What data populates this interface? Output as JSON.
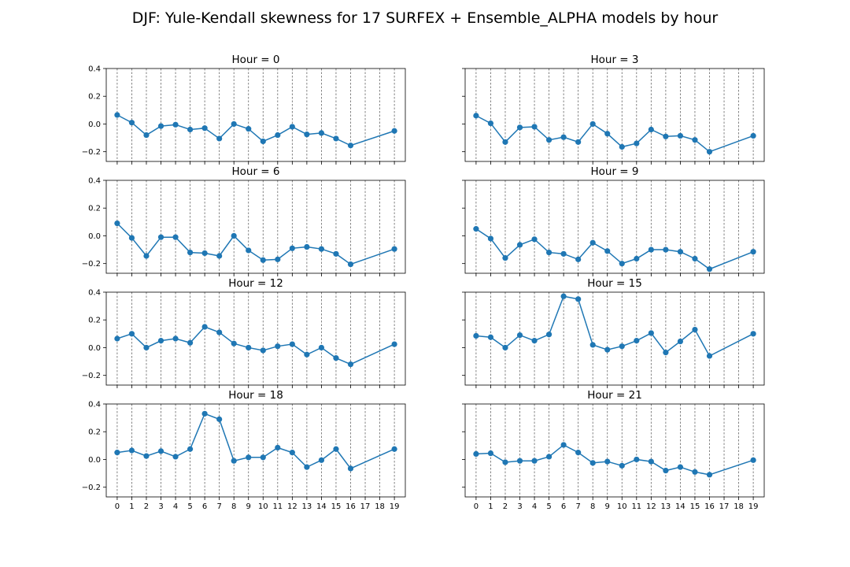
{
  "figure": {
    "title": "DJF: Yule-Kendall skewness for 17 SURFEX + Ensemble_ALPHA models by hour"
  },
  "colors": {
    "series": "#1f77b4",
    "grid": "#666666"
  },
  "chart_data": [
    {
      "type": "line",
      "title": "Hour = 0",
      "x": [
        0,
        1,
        2,
        3,
        4,
        5,
        6,
        7,
        8,
        9,
        10,
        11,
        12,
        13,
        14,
        15,
        16,
        19
      ],
      "values": [
        0.065,
        0.01,
        -0.08,
        -0.015,
        -0.005,
        -0.04,
        -0.03,
        -0.105,
        0.0,
        -0.035,
        -0.125,
        -0.08,
        -0.02,
        -0.075,
        -0.065,
        -0.105,
        -0.155,
        -0.05
      ],
      "xticks": [
        0,
        1,
        2,
        3,
        4,
        5,
        6,
        7,
        8,
        9,
        10,
        11,
        12,
        13,
        14,
        15,
        16,
        17,
        18,
        19
      ],
      "yticks": [
        "0.4",
        "0.2",
        "0.0",
        "−0.2"
      ],
      "ylim": [
        -0.27,
        0.4
      ],
      "grid": "x-dashed"
    },
    {
      "type": "line",
      "title": "Hour = 3",
      "x": [
        0,
        1,
        2,
        3,
        4,
        5,
        6,
        7,
        8,
        9,
        10,
        11,
        12,
        13,
        14,
        15,
        16,
        19
      ],
      "values": [
        0.06,
        0.005,
        -0.13,
        -0.025,
        -0.02,
        -0.115,
        -0.095,
        -0.13,
        0.0,
        -0.07,
        -0.165,
        -0.14,
        -0.04,
        -0.09,
        -0.085,
        -0.115,
        -0.2,
        -0.085
      ],
      "xticks": [
        0,
        1,
        2,
        3,
        4,
        5,
        6,
        7,
        8,
        9,
        10,
        11,
        12,
        13,
        14,
        15,
        16,
        17,
        18,
        19
      ],
      "yticks": [],
      "ylim": [
        -0.27,
        0.4
      ],
      "grid": "x-dashed"
    },
    {
      "type": "line",
      "title": "Hour = 6",
      "x": [
        0,
        1,
        2,
        3,
        4,
        5,
        6,
        7,
        8,
        9,
        10,
        11,
        12,
        13,
        14,
        15,
        16,
        19
      ],
      "values": [
        0.09,
        -0.015,
        -0.145,
        -0.01,
        -0.01,
        -0.12,
        -0.125,
        -0.145,
        0.0,
        -0.105,
        -0.175,
        -0.17,
        -0.09,
        -0.08,
        -0.095,
        -0.13,
        -0.205,
        -0.095
      ],
      "xticks": [
        0,
        1,
        2,
        3,
        4,
        5,
        6,
        7,
        8,
        9,
        10,
        11,
        12,
        13,
        14,
        15,
        16,
        17,
        18,
        19
      ],
      "yticks": [
        "0.4",
        "0.2",
        "0.0",
        "−0.2"
      ],
      "ylim": [
        -0.27,
        0.4
      ],
      "grid": "x-dashed"
    },
    {
      "type": "line",
      "title": "Hour = 9",
      "x": [
        0,
        1,
        2,
        3,
        4,
        5,
        6,
        7,
        8,
        9,
        10,
        11,
        12,
        13,
        14,
        15,
        16,
        19
      ],
      "values": [
        0.05,
        -0.02,
        -0.16,
        -0.065,
        -0.025,
        -0.12,
        -0.13,
        -0.17,
        -0.05,
        -0.11,
        -0.2,
        -0.165,
        -0.1,
        -0.1,
        -0.115,
        -0.165,
        -0.24,
        -0.115
      ],
      "xticks": [
        0,
        1,
        2,
        3,
        4,
        5,
        6,
        7,
        8,
        9,
        10,
        11,
        12,
        13,
        14,
        15,
        16,
        17,
        18,
        19
      ],
      "yticks": [],
      "ylim": [
        -0.27,
        0.4
      ],
      "grid": "x-dashed"
    },
    {
      "type": "line",
      "title": "Hour = 12",
      "x": [
        0,
        1,
        2,
        3,
        4,
        5,
        6,
        7,
        8,
        9,
        10,
        11,
        12,
        13,
        14,
        15,
        16,
        19
      ],
      "values": [
        0.065,
        0.1,
        0.0,
        0.05,
        0.065,
        0.035,
        0.15,
        0.11,
        0.03,
        0.0,
        -0.02,
        0.01,
        0.025,
        -0.05,
        0.0,
        -0.075,
        -0.12,
        0.025
      ],
      "xticks": [
        0,
        1,
        2,
        3,
        4,
        5,
        6,
        7,
        8,
        9,
        10,
        11,
        12,
        13,
        14,
        15,
        16,
        17,
        18,
        19
      ],
      "yticks": [
        "0.4",
        "0.2",
        "0.0",
        "−0.2"
      ],
      "ylim": [
        -0.27,
        0.4
      ],
      "grid": "x-dashed"
    },
    {
      "type": "line",
      "title": "Hour = 15",
      "x": [
        0,
        1,
        2,
        3,
        4,
        5,
        6,
        7,
        8,
        9,
        10,
        11,
        12,
        13,
        14,
        15,
        16,
        19
      ],
      "values": [
        0.085,
        0.075,
        0.0,
        0.09,
        0.05,
        0.095,
        0.37,
        0.35,
        0.02,
        -0.015,
        0.01,
        0.05,
        0.105,
        -0.035,
        0.045,
        0.13,
        -0.06,
        0.1
      ],
      "xticks": [
        0,
        1,
        2,
        3,
        4,
        5,
        6,
        7,
        8,
        9,
        10,
        11,
        12,
        13,
        14,
        15,
        16,
        17,
        18,
        19
      ],
      "yticks": [],
      "ylim": [
        -0.27,
        0.4
      ],
      "grid": "x-dashed"
    },
    {
      "type": "line",
      "title": "Hour = 18",
      "x": [
        0,
        1,
        2,
        3,
        4,
        5,
        6,
        7,
        8,
        9,
        10,
        11,
        12,
        13,
        14,
        15,
        16,
        19
      ],
      "values": [
        0.05,
        0.065,
        0.025,
        0.06,
        0.02,
        0.075,
        0.33,
        0.29,
        -0.01,
        0.015,
        0.015,
        0.085,
        0.05,
        -0.055,
        -0.005,
        0.075,
        -0.065,
        0.075
      ],
      "xticks": [
        0,
        1,
        2,
        3,
        4,
        5,
        6,
        7,
        8,
        9,
        10,
        11,
        12,
        13,
        14,
        15,
        16,
        17,
        18,
        19
      ],
      "yticks": [
        "0.4",
        "0.2",
        "0.0",
        "−0.2"
      ],
      "ylim": [
        -0.27,
        0.4
      ],
      "grid": "x-dashed"
    },
    {
      "type": "line",
      "title": "Hour = 21",
      "x": [
        0,
        1,
        2,
        3,
        4,
        5,
        6,
        7,
        8,
        9,
        10,
        11,
        12,
        13,
        14,
        15,
        16,
        19
      ],
      "values": [
        0.04,
        0.045,
        -0.02,
        -0.01,
        -0.01,
        0.02,
        0.105,
        0.05,
        -0.025,
        -0.015,
        -0.045,
        0.0,
        -0.015,
        -0.08,
        -0.055,
        -0.09,
        -0.11,
        -0.005
      ],
      "xticks": [
        0,
        1,
        2,
        3,
        4,
        5,
        6,
        7,
        8,
        9,
        10,
        11,
        12,
        13,
        14,
        15,
        16,
        17,
        18,
        19
      ],
      "yticks": [],
      "ylim": [
        -0.27,
        0.4
      ],
      "grid": "x-dashed"
    }
  ]
}
